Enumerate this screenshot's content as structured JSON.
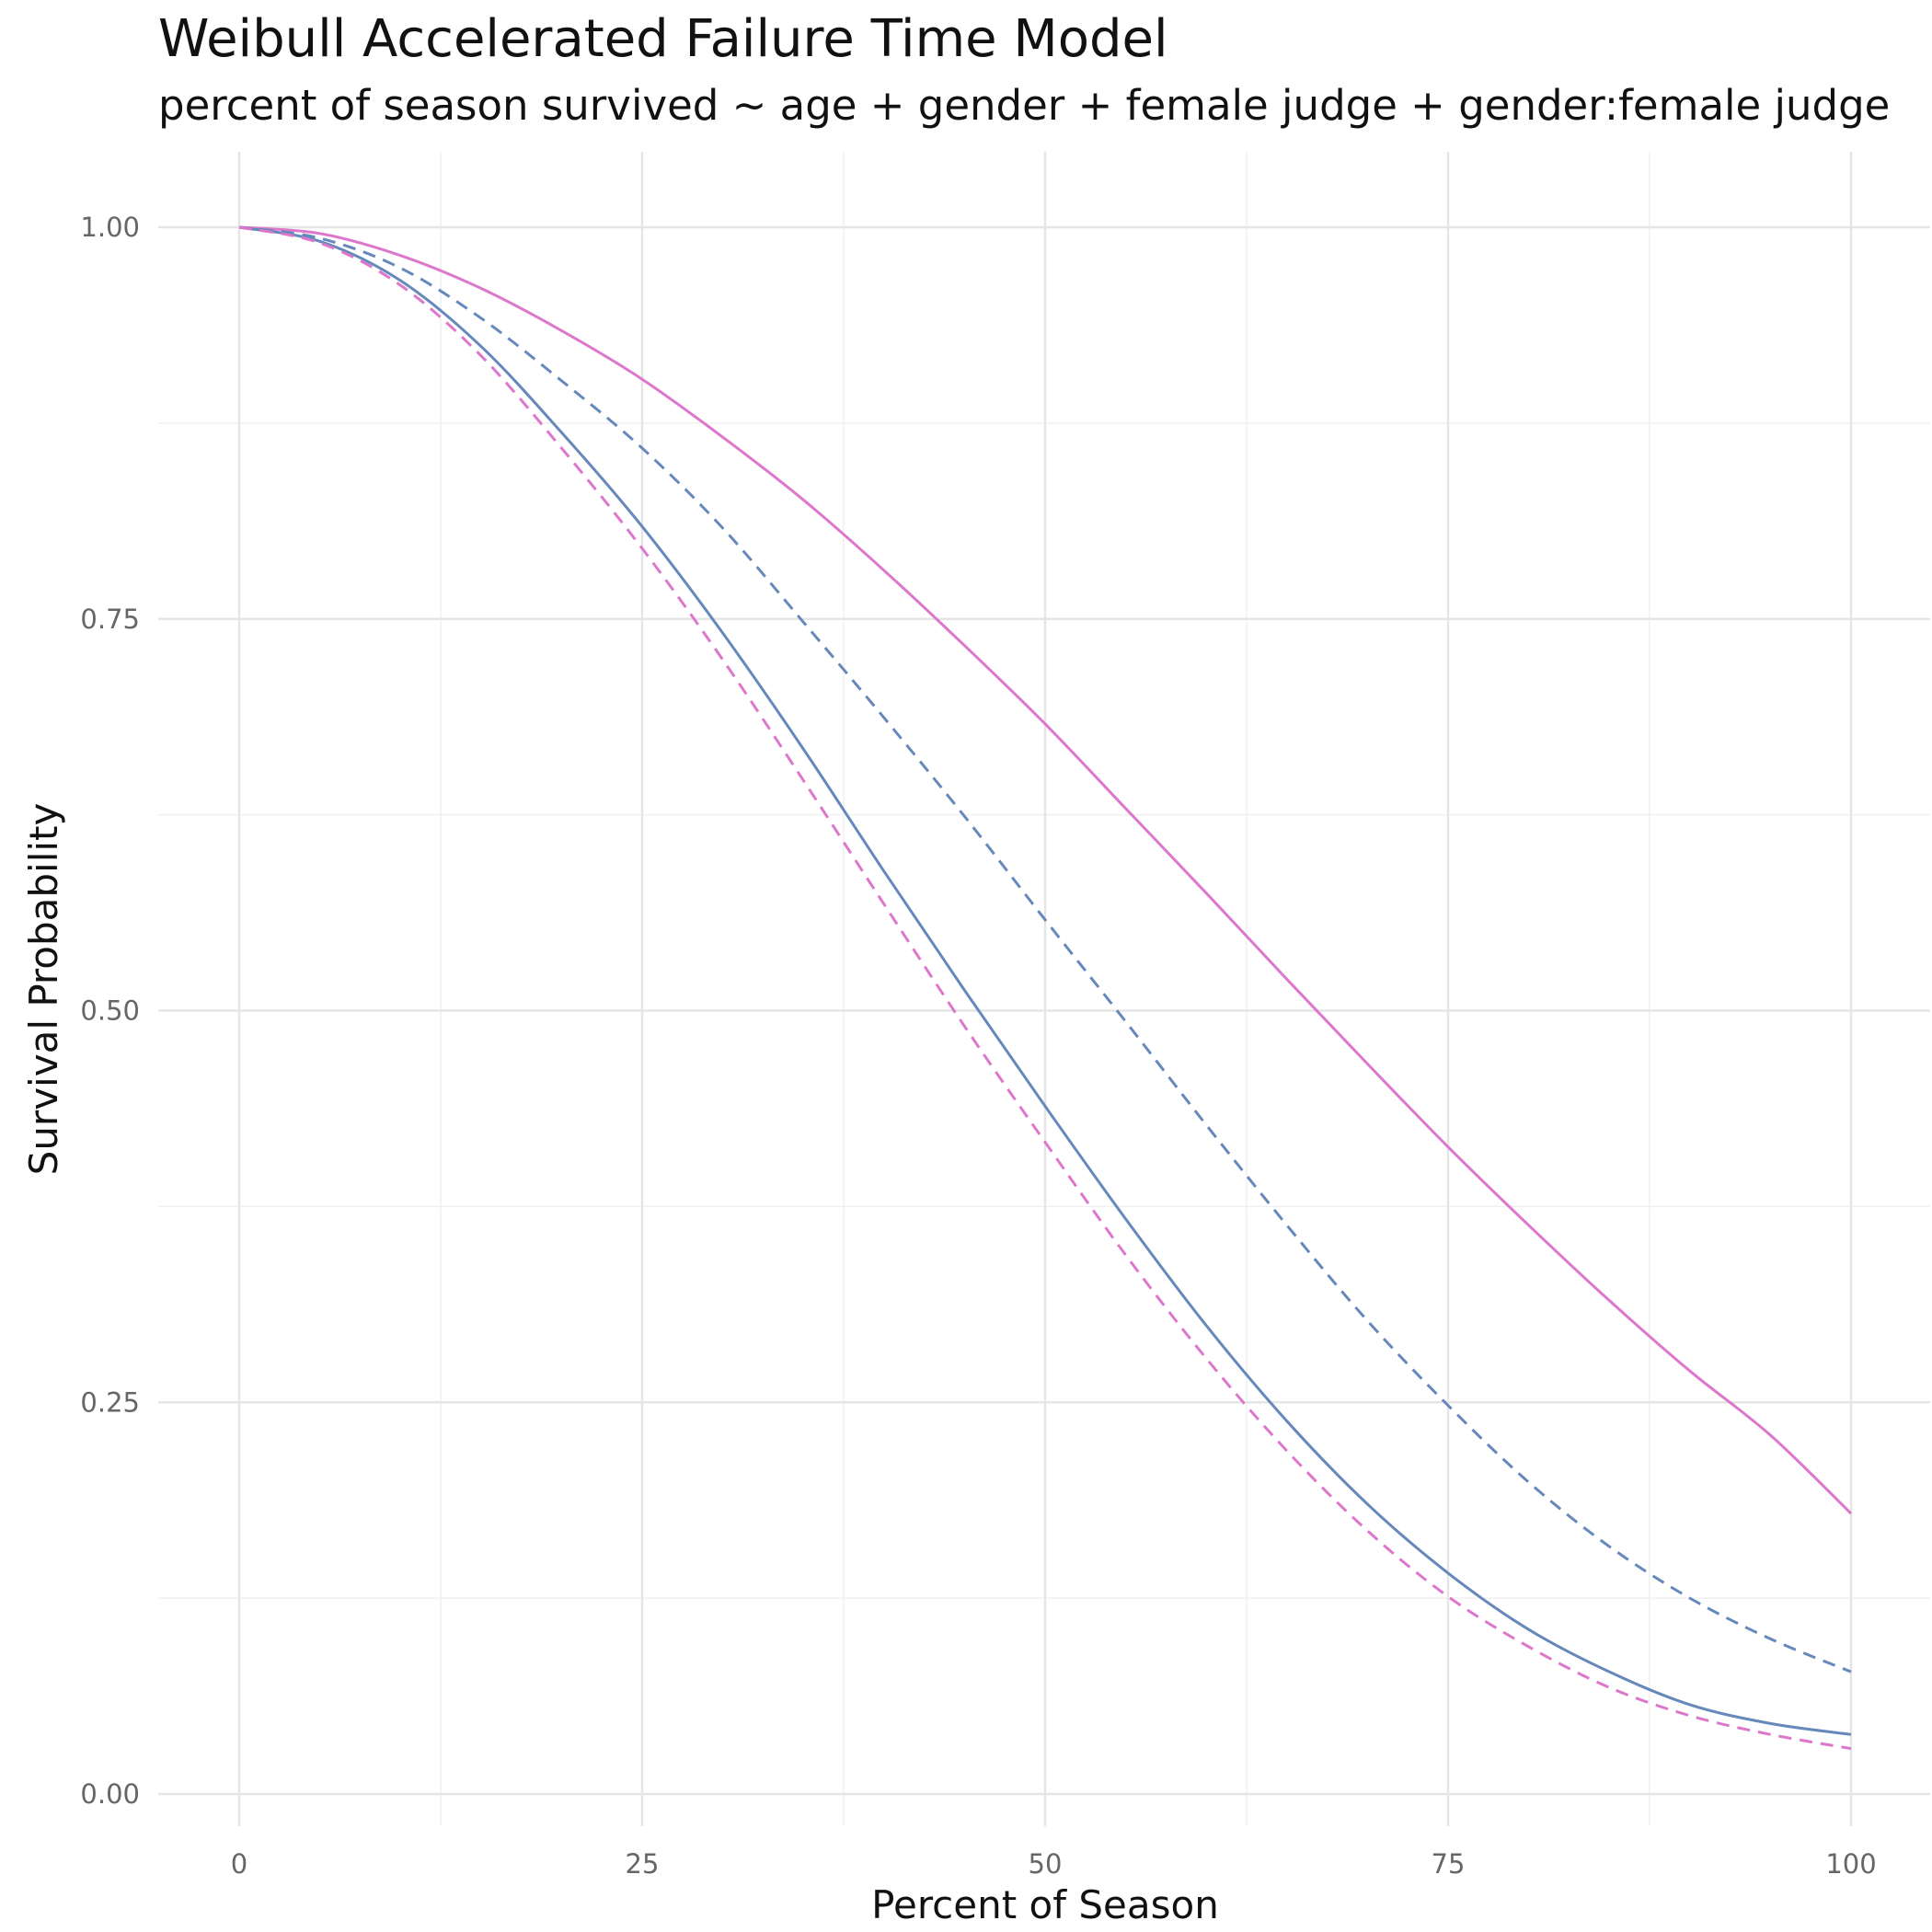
{
  "chart_data": {
    "type": "line",
    "title": "Weibull Accelerated Failure Time Model",
    "subtitle": "percent of season survived ~ age + gender + female judge + gender:female judge",
    "xlabel": "Percent of Season",
    "ylabel": "Survival Probability",
    "xlim": [
      0,
      100
    ],
    "ylim": [
      0,
      1
    ],
    "x_ticks": [
      "0",
      "25",
      "50",
      "75",
      "100"
    ],
    "y_ticks": [
      "0.00",
      "0.25",
      "0.50",
      "0.75",
      "1.00"
    ],
    "grid": true,
    "legend": "none",
    "x": [
      0,
      5,
      10,
      15,
      20,
      25,
      30,
      35,
      40,
      45,
      50,
      55,
      60,
      65,
      70,
      75,
      80,
      85,
      90,
      95,
      100
    ],
    "series": [
      {
        "color": "#dd77cc",
        "dash": "solid",
        "values": [
          1.0,
          0.996,
          0.982,
          0.961,
          0.934,
          0.903,
          0.866,
          0.826,
          0.781,
          0.733,
          0.683,
          0.629,
          0.575,
          0.52,
          0.466,
          0.413,
          0.363,
          0.315,
          0.27,
          0.229,
          0.179
        ]
      },
      {
        "color": "#6688bb",
        "dash": "dashed",
        "values": [
          1.0,
          0.993,
          0.974,
          0.942,
          0.902,
          0.859,
          0.808,
          0.748,
          0.687,
          0.624,
          0.558,
          0.493,
          0.427,
          0.363,
          0.302,
          0.248,
          0.199,
          0.158,
          0.125,
          0.099,
          0.078
        ]
      },
      {
        "color": "#6688bb",
        "dash": "solid",
        "values": [
          1.0,
          0.991,
          0.966,
          0.924,
          0.869,
          0.809,
          0.741,
          0.667,
          0.589,
          0.513,
          0.439,
          0.367,
          0.299,
          0.238,
          0.185,
          0.141,
          0.105,
          0.078,
          0.057,
          0.045,
          0.038
        ]
      },
      {
        "color": "#dd77cc",
        "dash": "dashed",
        "values": [
          1.0,
          0.99,
          0.963,
          0.918,
          0.859,
          0.795,
          0.724,
          0.647,
          0.568,
          0.49,
          0.416,
          0.344,
          0.278,
          0.219,
          0.168,
          0.126,
          0.094,
          0.068,
          0.05,
          0.038,
          0.029
        ]
      }
    ]
  }
}
